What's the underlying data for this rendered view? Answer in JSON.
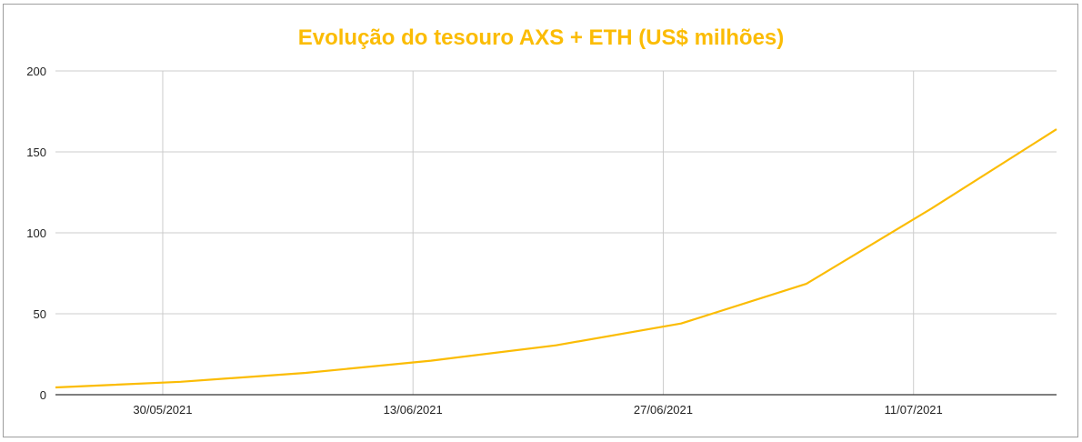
{
  "chart_data": {
    "type": "line",
    "title": "Evolução do tesouro AXS + ETH (US$ milhões)",
    "xlabel": "",
    "ylabel": "",
    "ylim": [
      0,
      200
    ],
    "yticks": [
      0,
      50,
      100,
      150,
      200
    ],
    "xticks": [
      "30/05/2021",
      "13/06/2021",
      "27/06/2021",
      "11/07/2021"
    ],
    "grid": true,
    "legend": "none",
    "x": [
      "24/05/2021",
      "31/05/2021",
      "07/06/2021",
      "14/06/2021",
      "21/06/2021",
      "28/06/2021",
      "05/07/2021",
      "12/07/2021",
      "19/07/2021"
    ],
    "series": [
      {
        "name": "Tesouro AXS + ETH",
        "color": "#fbbc04",
        "values": [
          4.5,
          8,
          13.5,
          21,
          30.5,
          44,
          68.5,
          115,
          164
        ]
      }
    ]
  },
  "colors": {
    "accent": "#fbbc04",
    "grid": "#cccccc",
    "axis": "#333333"
  }
}
